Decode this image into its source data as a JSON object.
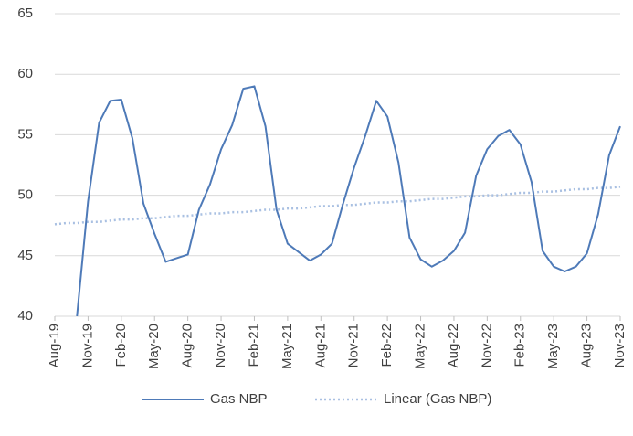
{
  "chart_data": {
    "type": "line",
    "categories": [
      "Aug-19",
      null,
      null,
      "Nov-19",
      null,
      null,
      "Feb-20",
      null,
      null,
      "May-20",
      null,
      null,
      "Aug-20",
      null,
      null,
      "Nov-20",
      null,
      null,
      "Feb-21",
      null,
      null,
      "May-21",
      null,
      null,
      "Aug-21",
      null,
      null,
      "Nov-21",
      null,
      null,
      "Feb-22",
      null,
      null,
      "May-22",
      null,
      null,
      "Aug-22",
      null,
      null,
      "Nov-22",
      null,
      null,
      "Feb-23",
      null,
      null,
      "May-23",
      null,
      null,
      "Aug-23",
      null,
      null,
      "Nov-23"
    ],
    "series": [
      {
        "name": "Gas NBP",
        "color": "#4e7ab8",
        "style": "solid",
        "values": [
          null,
          null,
          40,
          49.5,
          56,
          57.8,
          57.9,
          54.7,
          49.3,
          46.8,
          44.5,
          44.8,
          45.1,
          48.8,
          50.9,
          53.8,
          55.8,
          58.8,
          59.0,
          55.7,
          48.8,
          46.0,
          45.3,
          44.6,
          45.1,
          46.0,
          49.3,
          52.3,
          54.9,
          57.8,
          56.5,
          52.7,
          46.5,
          44.7,
          44.1,
          44.6,
          45.4,
          46.9,
          51.6,
          53.8,
          54.9,
          55.4,
          54.2,
          51.1,
          45.4,
          44.1,
          43.7,
          44.1,
          45.2,
          48.4,
          53.3,
          55.7
        ]
      },
      {
        "name": "Linear (Gas NBP)",
        "color": "#a9c0e2",
        "style": "dotted",
        "values": [
          47.6,
          47.7,
          47.7,
          47.8,
          47.8,
          47.9,
          48.0,
          48.0,
          48.1,
          48.1,
          48.2,
          48.3,
          48.3,
          48.4,
          48.5,
          48.5,
          48.6,
          48.6,
          48.7,
          48.8,
          48.8,
          48.9,
          48.9,
          49.0,
          49.1,
          49.1,
          49.2,
          49.2,
          49.3,
          49.4,
          49.4,
          49.5,
          49.5,
          49.6,
          49.7,
          49.7,
          49.8,
          49.9,
          49.9,
          50.0,
          50.0,
          50.1,
          50.2,
          50.2,
          50.3,
          50.3,
          50.4,
          50.5,
          50.5,
          50.6,
          50.6,
          50.7
        ]
      }
    ],
    "ylim": [
      40,
      65
    ],
    "yticks": [
      40,
      45,
      50,
      55,
      60,
      65
    ],
    "grid": true,
    "legend": "bottom"
  }
}
